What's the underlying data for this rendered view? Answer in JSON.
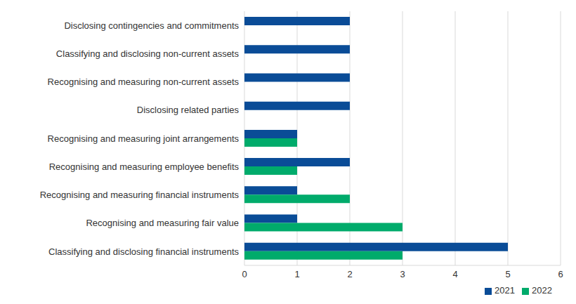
{
  "chart_data": {
    "type": "bar",
    "orientation": "horizontal",
    "categories": [
      "Disclosing contingencies and commitments",
      "Classifying and disclosing non-current assets",
      "Recognising and measuring non-current assets",
      "Disclosing related parties",
      "Recognising and measuring joint arrangements",
      "Recognising and measuring employee benefits",
      "Recognising and measuring financial instruments",
      "Recognising and measuring fair value",
      "Classifying and disclosing financial instruments"
    ],
    "series": [
      {
        "name": "2021",
        "color": "#0a4c97",
        "values": [
          2,
          2,
          2,
          2,
          1,
          2,
          1,
          1,
          5
        ]
      },
      {
        "name": "2022",
        "color": "#00ab6b",
        "values": [
          0,
          0,
          0,
          0,
          1,
          1,
          2,
          3,
          3
        ]
      }
    ],
    "xlim": [
      0,
      6
    ],
    "xticks": [
      0,
      1,
      2,
      3,
      4,
      5,
      6
    ],
    "grid": true,
    "legend": "bottom"
  }
}
